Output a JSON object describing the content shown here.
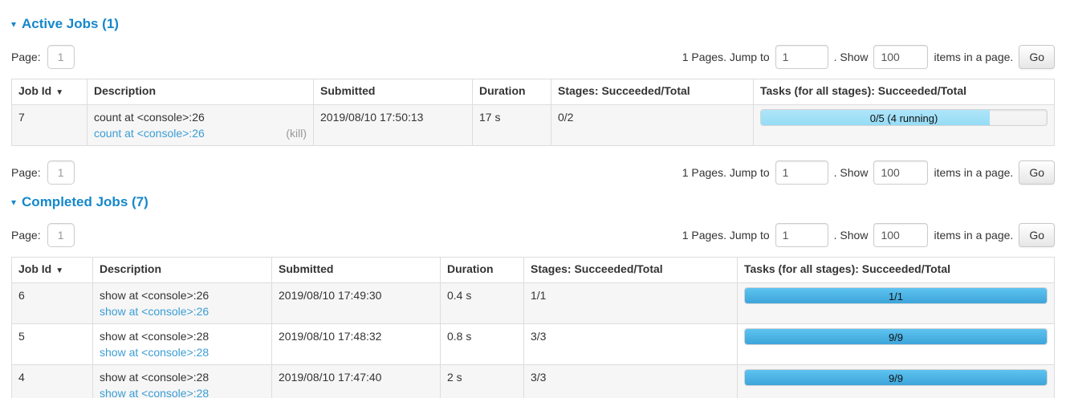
{
  "icons": {
    "collapse_arrow": "▾",
    "sort_desc_arrow": "▼"
  },
  "pagination": {
    "page_label": "Page:",
    "page_value": "1",
    "pages_info": "1 Pages. Jump to",
    "jump_value": "1",
    "show_label": ". Show",
    "show_value": "100",
    "items_label": "items in a page.",
    "go_label": "Go"
  },
  "active_jobs": {
    "title": "Active Jobs (1)",
    "columns": [
      "Job Id",
      "Description",
      "Submitted",
      "Duration",
      "Stages: Succeeded/Total",
      "Tasks (for all stages): Succeeded/Total"
    ],
    "rows": [
      {
        "job_id": "7",
        "description": "count at <console>:26",
        "description_link": "count at <console>:26",
        "kill_label": "(kill)",
        "submitted": "2019/08/10 17:50:13",
        "duration": "17 s",
        "stages": "0/2",
        "tasks": {
          "label": "0/5 (4 running)",
          "completed_width": "0%",
          "running_width": "80%"
        }
      }
    ]
  },
  "completed_jobs": {
    "title": "Completed Jobs (7)",
    "columns": [
      "Job Id",
      "Description",
      "Submitted",
      "Duration",
      "Stages: Succeeded/Total",
      "Tasks (for all stages): Succeeded/Total"
    ],
    "rows": [
      {
        "job_id": "6",
        "description": "show at <console>:26",
        "description_link": "show at <console>:26",
        "submitted": "2019/08/10 17:49:30",
        "duration": "0.4 s",
        "stages": "1/1",
        "tasks": {
          "label": "1/1",
          "completed_width": "100%",
          "running_width": "0%"
        }
      },
      {
        "job_id": "5",
        "description": "show at <console>:28",
        "description_link": "show at <console>:28",
        "submitted": "2019/08/10 17:48:32",
        "duration": "0.8 s",
        "stages": "3/3",
        "tasks": {
          "label": "9/9",
          "completed_width": "100%",
          "running_width": "0%"
        }
      },
      {
        "job_id": "4",
        "description": "show at <console>:28",
        "description_link": "show at <console>:28",
        "submitted": "2019/08/10 17:47:40",
        "duration": "2 s",
        "stages": "3/3",
        "tasks": {
          "label": "9/9",
          "completed_width": "100%",
          "running_width": "0%"
        }
      }
    ]
  }
}
